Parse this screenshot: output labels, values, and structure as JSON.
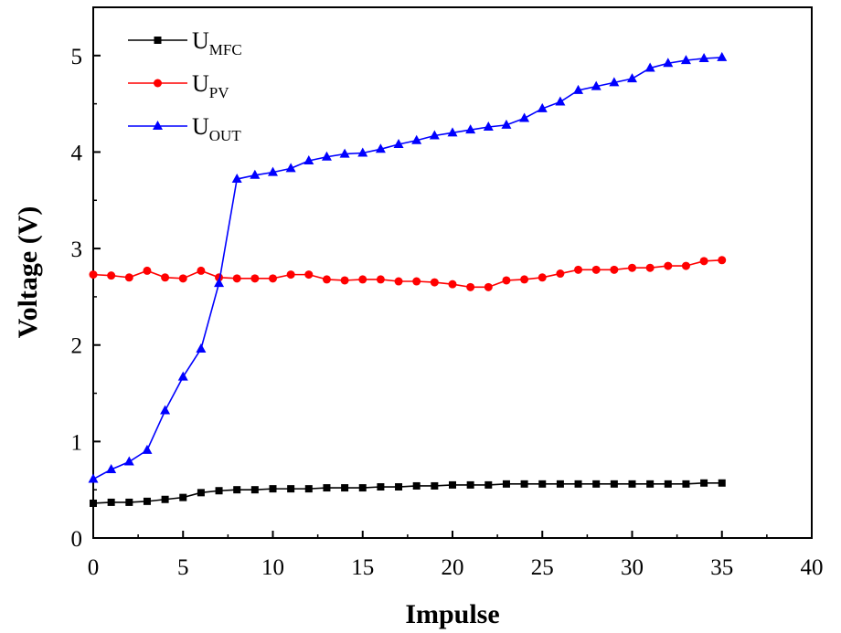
{
  "chart_data": {
    "type": "line",
    "xlabel": "Impulse",
    "ylabel": "Voltage (V)",
    "xlim": [
      0,
      40
    ],
    "ylim": [
      0,
      5.5
    ],
    "xticks": [
      0,
      5,
      10,
      15,
      20,
      25,
      30,
      35,
      40
    ],
    "yticks": [
      0,
      1,
      2,
      3,
      4,
      5
    ],
    "grid": false,
    "legend_position": "top-left",
    "x": [
      0,
      1,
      2,
      3,
      4,
      5,
      6,
      7,
      8,
      9,
      10,
      11,
      12,
      13,
      14,
      15,
      16,
      17,
      18,
      19,
      20,
      21,
      22,
      23,
      24,
      25,
      26,
      27,
      28,
      29,
      30,
      31,
      32,
      33,
      34,
      35
    ],
    "series": [
      {
        "name": "UMFC",
        "label_main": "U",
        "label_sub": "MFC",
        "color": "#000000",
        "marker": "square",
        "values": [
          0.36,
          0.37,
          0.37,
          0.38,
          0.4,
          0.42,
          0.47,
          0.49,
          0.5,
          0.5,
          0.51,
          0.51,
          0.51,
          0.52,
          0.52,
          0.52,
          0.53,
          0.53,
          0.54,
          0.54,
          0.55,
          0.55,
          0.55,
          0.56,
          0.56,
          0.56,
          0.56,
          0.56,
          0.56,
          0.56,
          0.56,
          0.56,
          0.56,
          0.56,
          0.57,
          0.57
        ]
      },
      {
        "name": "UPV",
        "label_main": "U",
        "label_sub": "PV",
        "color": "#ff0000",
        "marker": "circle",
        "values": [
          2.73,
          2.72,
          2.7,
          2.77,
          2.7,
          2.69,
          2.77,
          2.7,
          2.69,
          2.69,
          2.69,
          2.73,
          2.73,
          2.68,
          2.67,
          2.68,
          2.68,
          2.66,
          2.66,
          2.65,
          2.63,
          2.6,
          2.6,
          2.67,
          2.68,
          2.7,
          2.74,
          2.78,
          2.78,
          2.78,
          2.8,
          2.8,
          2.82,
          2.82,
          2.87,
          2.88
        ]
      },
      {
        "name": "UOUT",
        "label_main": "U",
        "label_sub": "OUT",
        "color": "#0000ff",
        "marker": "triangle",
        "values": [
          0.61,
          0.71,
          0.79,
          0.91,
          1.32,
          1.67,
          1.96,
          2.64,
          3.72,
          3.76,
          3.79,
          3.83,
          3.91,
          3.95,
          3.98,
          3.99,
          4.03,
          4.08,
          4.12,
          4.17,
          4.2,
          4.23,
          4.26,
          4.28,
          4.35,
          4.45,
          4.52,
          4.64,
          4.68,
          4.72,
          4.76,
          4.87,
          4.92,
          4.95,
          4.97,
          4.98
        ]
      }
    ]
  }
}
